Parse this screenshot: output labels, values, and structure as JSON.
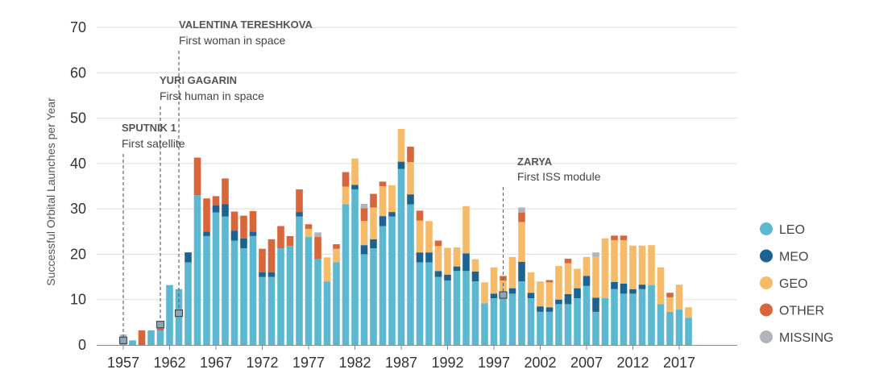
{
  "chart_data": {
    "type": "bar",
    "stacked": true,
    "ylabel": "Successful Orbital Launches per Year",
    "ylim": [
      0,
      70
    ],
    "yticks": [
      0,
      10,
      20,
      30,
      40,
      50,
      60,
      70
    ],
    "xtick_labels": [
      "1957",
      "1962",
      "1967",
      "1972",
      "1977",
      "1982",
      "1987",
      "1992",
      "1997",
      "2002",
      "2007",
      "2012",
      "2017"
    ],
    "grid": true,
    "legend_position": "right",
    "categories": [
      1957,
      1958,
      1959,
      1960,
      1961,
      1962,
      1963,
      1964,
      1965,
      1966,
      1967,
      1968,
      1969,
      1970,
      1971,
      1972,
      1973,
      1974,
      1975,
      1976,
      1977,
      1978,
      1979,
      1980,
      1981,
      1982,
      1983,
      1984,
      1985,
      1986,
      1987,
      1988,
      1989,
      1990,
      1991,
      1992,
      1993,
      1994,
      1995,
      1996,
      1997,
      1998,
      1999,
      2000,
      2001,
      2002,
      2003,
      2004,
      2005,
      2006,
      2007,
      2008,
      2009,
      2010,
      2011,
      2012,
      2013,
      2014,
      2015,
      2016,
      2017,
      2018
    ],
    "series": [
      {
        "name": "LEO",
        "color": "#5bb8d0",
        "values": [
          1.8,
          1,
          0,
          3.2,
          3.2,
          13.2,
          12.3,
          18.2,
          33,
          24,
          29.2,
          28.3,
          23,
          21.3,
          24,
          15,
          15,
          21.3,
          21.8,
          28.3,
          23.8,
          19,
          14,
          18.2,
          31,
          34.3,
          20,
          21.3,
          26.2,
          28.3,
          38.8,
          31,
          18.2,
          18.2,
          15,
          14.2,
          16.3,
          16.3,
          14,
          9.2,
          10.3,
          10.3,
          11.3,
          14,
          10.3,
          7.3,
          7.3,
          9,
          9,
          10.3,
          13,
          7.3,
          10.3,
          12.3,
          11.3,
          11.3,
          12.3,
          13.2,
          9,
          7.3,
          7.8,
          6
        ]
      },
      {
        "name": "MEO",
        "color": "#1c6391",
        "values": [
          0,
          0,
          0,
          0,
          0,
          0,
          0,
          2.2,
          0,
          1,
          1.6,
          2.7,
          2.2,
          2.2,
          1,
          1,
          1,
          0,
          0,
          1,
          0,
          0,
          0,
          0,
          0,
          1,
          2,
          2,
          2.2,
          1,
          1.6,
          2.2,
          2.2,
          2.2,
          1.3,
          1.3,
          1,
          3.9,
          2.2,
          0,
          1,
          1.2,
          1.2,
          4.3,
          1.2,
          1.2,
          1,
          1,
          2.2,
          2.2,
          2.2,
          3.1,
          0,
          1.6,
          2.2,
          1,
          1,
          0,
          0,
          0,
          0,
          0
        ]
      },
      {
        "name": "GEO",
        "color": "#f5bb69",
        "values": [
          0,
          0,
          0,
          0,
          0,
          0,
          0,
          0,
          0,
          0,
          0,
          0,
          0,
          0,
          0,
          0,
          0,
          0,
          0,
          0,
          1.8,
          0,
          5.3,
          3,
          3.9,
          5.8,
          5.3,
          7,
          6.6,
          5.9,
          7.2,
          7.1,
          7,
          6.9,
          5.5,
          5.9,
          4.2,
          10.4,
          2.7,
          4.6,
          5.8,
          2.7,
          6.9,
          8.8,
          4.5,
          5.5,
          5.5,
          7.4,
          6.8,
          4.3,
          4.2,
          9,
          13.2,
          9.2,
          9.6,
          9.6,
          8.6,
          8.8,
          8.1,
          3.2,
          5.5,
          2.3
        ]
      },
      {
        "name": "OTHER",
        "color": "#d9653b",
        "values": [
          0,
          0,
          3.2,
          0,
          1.1,
          0,
          0,
          0,
          8.3,
          7.3,
          2,
          5.7,
          4.2,
          5,
          4.5,
          5.2,
          7.3,
          4.9,
          2.2,
          5,
          1,
          4.8,
          0,
          1,
          3.2,
          0,
          2.8,
          3,
          1,
          0,
          0,
          3.4,
          2.2,
          0,
          1.2,
          0,
          0,
          0,
          0,
          0,
          0,
          1,
          0,
          2.1,
          0,
          0,
          0.5,
          0,
          1,
          0,
          0,
          0,
          0,
          1,
          1,
          0,
          0,
          0,
          0,
          1,
          0,
          0
        ]
      },
      {
        "name": "MISSING",
        "color": "#b1b4b8",
        "values": [
          0.5,
          0,
          0,
          0,
          0,
          0,
          0,
          0,
          0,
          0,
          0,
          0,
          0,
          0,
          0,
          0,
          0,
          0,
          0,
          0,
          0,
          1,
          0,
          0,
          0,
          0,
          1,
          0,
          0,
          0,
          0,
          0,
          0,
          0,
          0,
          0,
          0,
          0,
          0,
          0,
          0,
          0,
          0,
          1.1,
          0,
          0,
          0,
          0,
          0,
          0,
          0,
          1,
          0,
          0,
          0,
          0,
          0,
          0,
          0,
          0,
          0,
          0
        ]
      }
    ],
    "annotations": [
      {
        "title": "VALENTINA TERESHKOVA",
        "subtitle": "First woman in space",
        "year": 1963,
        "marker_value": 7
      },
      {
        "title": "YURI GAGARIN",
        "subtitle": "First human in space",
        "year": 1961,
        "marker_value": 4.5
      },
      {
        "title": "SPUTNIK 1",
        "subtitle": "First satellite",
        "year": 1957,
        "marker_value": 1
      },
      {
        "title": "ZARYA",
        "subtitle": "First ISS module",
        "year": 1998,
        "marker_value": 11
      }
    ]
  }
}
